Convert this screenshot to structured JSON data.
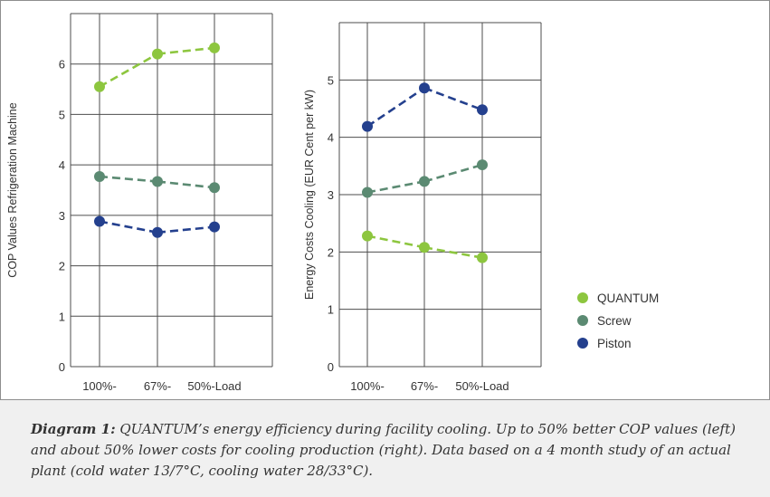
{
  "chart_data": [
    {
      "type": "line",
      "categories": [
        "100%-",
        "67%-",
        "50%-Load"
      ],
      "ylabel": "COP Values Refrigeration Machine",
      "ylim": [
        0,
        7
      ],
      "yticks": [
        "0",
        "1",
        "2",
        "3",
        "4",
        "5",
        "6"
      ],
      "grid": true,
      "series": [
        {
          "name": "QUANTUM",
          "color": "#8dc63f",
          "values": [
            5.55,
            6.2,
            6.32
          ]
        },
        {
          "name": "Screw",
          "color": "#5b8a72",
          "values": [
            3.77,
            3.67,
            3.55
          ]
        },
        {
          "name": "Piston",
          "color": "#24408e",
          "values": [
            2.88,
            2.66,
            2.77
          ]
        }
      ]
    },
    {
      "type": "line",
      "categories": [
        "100%-",
        "67%-",
        "50%-Load"
      ],
      "ylabel": "Energy Costs Cooling (EUR Cent per kW)",
      "ylim": [
        0,
        6
      ],
      "yticks": [
        "0",
        "1",
        "2",
        "3",
        "4",
        "5"
      ],
      "grid": true,
      "series": [
        {
          "name": "QUANTUM",
          "color": "#8dc63f",
          "values": [
            2.28,
            2.08,
            1.9
          ]
        },
        {
          "name": "Screw",
          "color": "#5b8a72",
          "values": [
            3.04,
            3.23,
            3.52
          ]
        },
        {
          "name": "Piston",
          "color": "#24408e",
          "values": [
            4.19,
            4.86,
            4.48
          ]
        }
      ]
    }
  ],
  "legend": {
    "position": "right",
    "items": [
      {
        "label": "QUANTUM",
        "color": "#8dc63f"
      },
      {
        "label": "Screw",
        "color": "#5b8a72"
      },
      {
        "label": "Piston",
        "color": "#24408e"
      }
    ]
  },
  "caption": {
    "label": "Diagram 1:",
    "text": " QUANTUM’s energy efficiency during facility cooling. Up to 50% better COP values (left) and about 50% lower costs for cooling production (right). Data based on a 4 month study of an actual plant (cold water 13/7°C, cooling water 28/33°C)."
  }
}
